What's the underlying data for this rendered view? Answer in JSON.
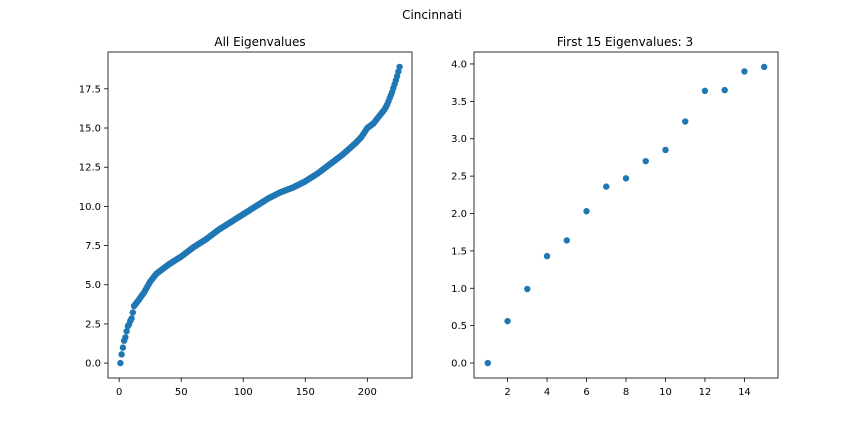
{
  "figure": {
    "suptitle": "Cincinnati"
  },
  "chart_data": [
    {
      "type": "scatter",
      "title": "All Eigenvalues",
      "xlabel": "",
      "ylabel": "",
      "xlim": [
        -9,
        236
      ],
      "ylim": [
        -0.95,
        19.85
      ],
      "xticks": [
        0,
        50,
        100,
        150,
        200
      ],
      "xtick_labels": [
        "0",
        "50",
        "100",
        "150",
        "200"
      ],
      "yticks": [
        0,
        2.5,
        5,
        7.5,
        10,
        12.5,
        15,
        17.5
      ],
      "ytick_labels": [
        "0.0",
        "2.5",
        "5.0",
        "7.5",
        "10.0",
        "12.5",
        "15.0",
        "17.5"
      ],
      "grid": false,
      "color": "#1f77b4",
      "x_range": [
        1,
        226
      ],
      "profile": {
        "knots_x": [
          1,
          2,
          3,
          4,
          5,
          6,
          7,
          8,
          9,
          10,
          11,
          12,
          15,
          20,
          25,
          30,
          40,
          50,
          60,
          70,
          80,
          90,
          100,
          110,
          120,
          130,
          140,
          150,
          160,
          170,
          180,
          190,
          195,
          200,
          205,
          210,
          212,
          214,
          216,
          218,
          220,
          222,
          224,
          226
        ],
        "knots_y": [
          0,
          0.56,
          0.99,
          1.43,
          1.64,
          2.03,
          2.36,
          2.47,
          2.7,
          2.85,
          3.23,
          3.64,
          3.95,
          4.5,
          5.2,
          5.7,
          6.3,
          6.8,
          7.4,
          7.9,
          8.5,
          9.0,
          9.5,
          10.0,
          10.5,
          10.9,
          11.2,
          11.6,
          12.1,
          12.7,
          13.3,
          14.0,
          14.4,
          15.0,
          15.3,
          15.8,
          16.0,
          16.2,
          16.5,
          16.9,
          17.3,
          17.8,
          18.3,
          18.9
        ]
      }
    },
    {
      "type": "scatter",
      "title": "First 15 Eigenvalues: 3",
      "xlabel": "",
      "ylabel": "",
      "xlim": [
        0.3,
        15.7
      ],
      "ylim": [
        -0.2,
        4.16
      ],
      "xticks": [
        2,
        4,
        6,
        8,
        10,
        12,
        14
      ],
      "xtick_labels": [
        "2",
        "4",
        "6",
        "8",
        "10",
        "12",
        "14"
      ],
      "yticks": [
        0,
        0.5,
        1,
        1.5,
        2,
        2.5,
        3,
        3.5,
        4
      ],
      "ytick_labels": [
        "0.0",
        "0.5",
        "1.0",
        "1.5",
        "2.0",
        "2.5",
        "3.0",
        "3.5",
        "4.0"
      ],
      "grid": false,
      "color": "#1f77b4",
      "x": [
        1,
        2,
        3,
        4,
        5,
        6,
        7,
        8,
        9,
        10,
        11,
        12,
        13,
        14,
        15
      ],
      "y": [
        0.0,
        0.56,
        0.99,
        1.43,
        1.64,
        2.03,
        2.36,
        2.47,
        2.7,
        2.85,
        3.23,
        3.64,
        3.65,
        3.9,
        3.96
      ]
    }
  ]
}
